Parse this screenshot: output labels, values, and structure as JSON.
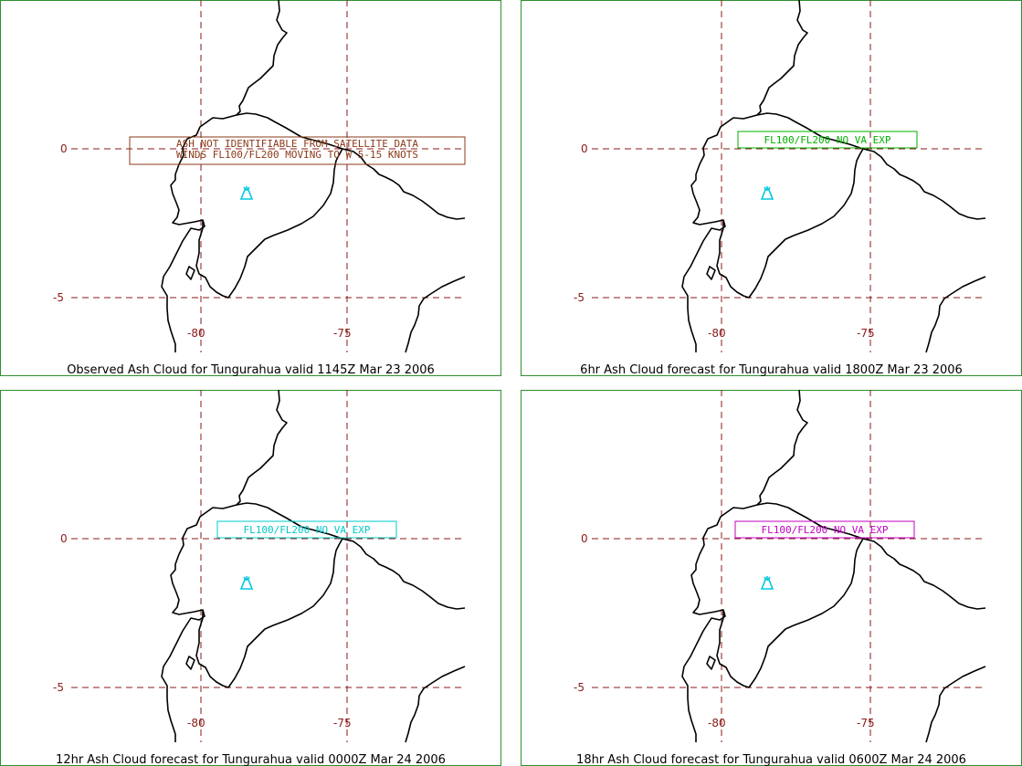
{
  "panels": [
    {
      "caption": "Observed Ash Cloud for Tungurahua valid 1145Z Mar 23 2006",
      "note": [
        "ASH NOT IDENTIFIABLE FROM SATELLITE DATA",
        "WINDS FL100/FL200 MOVING TO W 5-15 KNOTS"
      ],
      "note_color": "#8b3a1a"
    },
    {
      "caption": "6hr Ash Cloud forecast for Tungurahua valid 1800Z Mar 23 2006",
      "note": [
        "FL100/FL200 NO VA EXP"
      ],
      "note_color": "#00b000"
    },
    {
      "caption": "12hr Ash Cloud forecast for Tungurahua valid 0000Z Mar 24 2006",
      "note": [
        "FL100/FL200 NO VA EXP"
      ],
      "note_color": "#00c8c8"
    },
    {
      "caption": "18hr Ash Cloud forecast for Tungurahua valid 0600Z Mar 24 2006",
      "note": [
        "FL100/FL200 NO VA EXP"
      ],
      "note_color": "#c000c0"
    }
  ],
  "lat_ticks": [
    "0",
    "-5"
  ],
  "lon_ticks": [
    "-80",
    "-75"
  ],
  "volcano_icon": "volcano-icon",
  "colors": {
    "frame": "#2f8f2f",
    "grid": "#8b1a1a",
    "coast": "#000000",
    "volcano": "#00c8e0"
  }
}
